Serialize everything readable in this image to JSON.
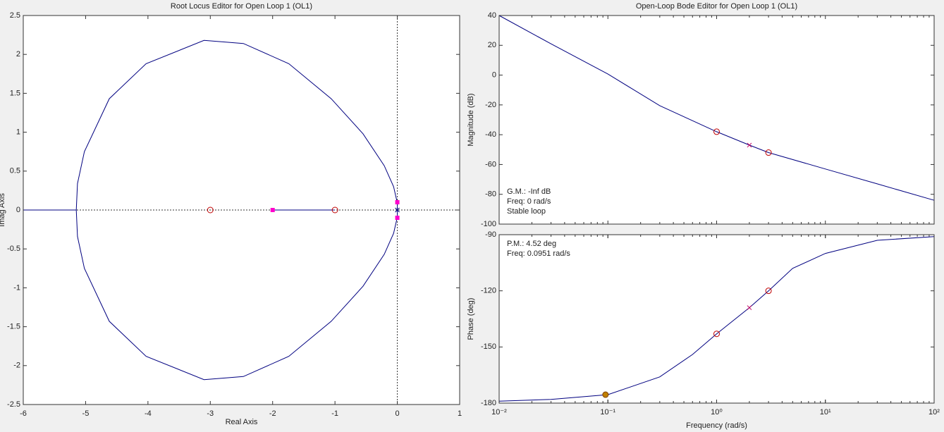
{
  "chart_data": [
    {
      "type": "line",
      "title": "Root Locus Editor for Open Loop 1 (OL1)",
      "x_label": "Real Axis",
      "y_label": "Imag Axis",
      "xlim": [
        -6,
        1
      ],
      "xticks": [
        -6,
        -5,
        -4,
        -3,
        -2,
        -1,
        0,
        1
      ],
      "ylim": [
        -2.5,
        2.5
      ],
      "yticks": [
        -2.5,
        -2,
        -1.5,
        -1,
        -0.5,
        0,
        0.5,
        1,
        1.5,
        2,
        2.5
      ],
      "series": [
        {
          "marker": "line",
          "color": "#000080",
          "x": [
            -6,
            -5.15,
            null,
            -5.15,
            -5.13,
            -5.02,
            -4.62,
            -4.03,
            -3.1,
            -2.47,
            -1.74,
            -1.06,
            -0.55,
            -0.21,
            -0.06,
            0,
            0,
            -0.06,
            -0.21,
            -0.55,
            -1.06,
            -1.74,
            -2.47,
            -3.1,
            -4.03,
            -4.62,
            -5.02,
            -5.13,
            -5.15,
            null,
            -2,
            -1
          ],
          "values": [
            0,
            0,
            null,
            0,
            0.34,
            0.75,
            1.43,
            1.88,
            2.18,
            2.14,
            1.88,
            1.43,
            0.98,
            0.57,
            0.3,
            0.09,
            -0.09,
            -0.3,
            -0.57,
            -0.98,
            -1.43,
            -1.88,
            -2.14,
            -2.18,
            -1.88,
            -1.43,
            -0.75,
            -0.34,
            0,
            null,
            0,
            0
          ]
        },
        {
          "marker": "circle",
          "color": "#c00000",
          "x": [
            -3,
            -1
          ],
          "values": [
            0,
            0
          ]
        },
        {
          "marker": "x",
          "color": "#000080",
          "x": [
            0
          ],
          "values": [
            0
          ]
        },
        {
          "marker": "square",
          "color": "#ff00cc",
          "x": [
            -2,
            0,
            0
          ],
          "values": [
            0,
            0.1,
            -0.1
          ]
        }
      ]
    },
    {
      "type": "line",
      "title": "Open-Loop Bode Editor for Open Loop 1 (OL1)",
      "y_label": "Magnitude (dB)",
      "xscale": "log",
      "xlim": [
        0.01,
        100
      ],
      "ylim": [
        -100,
        40
      ],
      "yticks": [
        -100,
        -80,
        -60,
        -40,
        -20,
        0,
        20,
        40
      ],
      "annotations": [
        "G.M.: -Inf dB",
        "Freq: 0 rad/s",
        "Stable loop"
      ],
      "annotation_corner": "lower left",
      "series": [
        {
          "marker": "line",
          "color": "#000080",
          "x": [
            0.01,
            0.03,
            0.1,
            0.3,
            1,
            2,
            3,
            10,
            30,
            100
          ],
          "values": [
            40,
            21,
            0.7,
            -20.5,
            -38,
            -47,
            -52,
            -63,
            -73,
            -84
          ]
        },
        {
          "marker": "circle",
          "color": "#c00000",
          "x": [
            1,
            3
          ],
          "values": [
            -38,
            -52
          ]
        },
        {
          "marker": "x",
          "color": "#c00060",
          "x": [
            2
          ],
          "values": [
            -47
          ]
        }
      ]
    },
    {
      "type": "line",
      "x_label": "Frequency (rad/s)",
      "y_label": "Phase (deg)",
      "xscale": "log",
      "xlim": [
        0.01,
        100
      ],
      "xticks": [
        {
          "value": 0.01,
          "label": "10⁻²"
        },
        {
          "value": 0.1,
          "label": "10⁻¹"
        },
        {
          "value": 1,
          "label": "10⁰"
        },
        {
          "value": 10,
          "label": "10¹"
        },
        {
          "value": 100,
          "label": "10²"
        }
      ],
      "ylim": [
        -180,
        -90
      ],
      "yticks": [
        -180,
        -150,
        -120,
        -90
      ],
      "annotations": [
        "P.M.: 4.52 deg",
        "Freq: 0.0951 rad/s"
      ],
      "annotation_corner": "upper left",
      "series": [
        {
          "marker": "dashdot",
          "color": "#c0a020",
          "x": [
            0.01,
            100
          ],
          "values": [
            -180,
            -180
          ]
        },
        {
          "marker": "line",
          "color": "#000080",
          "x": [
            0.01,
            0.03,
            0.1,
            0.3,
            0.6,
            1,
            2,
            3,
            5,
            10,
            30,
            100
          ],
          "values": [
            -179,
            -178,
            -175.5,
            -166,
            -154,
            -143,
            -129,
            -120,
            -108,
            -100,
            -93,
            -91
          ]
        },
        {
          "marker": "circle",
          "color": "#c00000",
          "x": [
            1,
            3
          ],
          "values": [
            -143,
            -120
          ]
        },
        {
          "marker": "x",
          "color": "#c00060",
          "x": [
            2
          ],
          "values": [
            -129
          ]
        },
        {
          "marker": "dot",
          "color": "#c08000",
          "x": [
            0.0951
          ],
          "values": [
            -175.5
          ]
        }
      ]
    }
  ]
}
